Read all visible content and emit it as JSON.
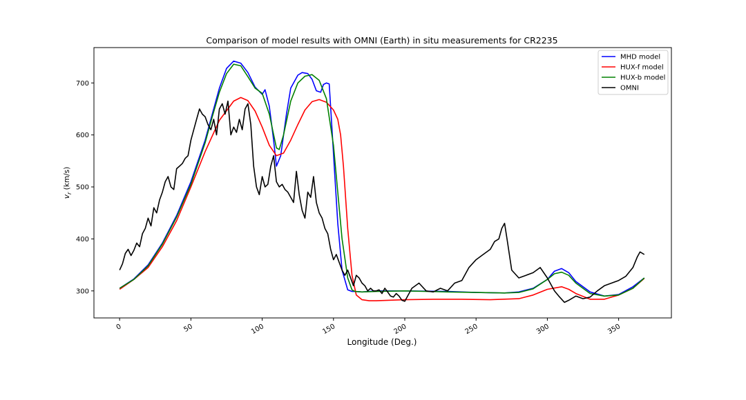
{
  "chart_data": {
    "type": "line",
    "title": "Comparison of model results with OMNI (Earth) in situ measurements for CR2235",
    "xlabel": "Longitude (Deg.)",
    "ylabel_var": "v",
    "ylabel_sub": "r",
    "ylabel_unit": " (km/s)",
    "xlim": [
      -18,
      387
    ],
    "ylim": [
      248,
      768
    ],
    "xticks": [
      0,
      50,
      100,
      150,
      200,
      250,
      300,
      350
    ],
    "yticks": [
      300,
      400,
      500,
      600,
      700
    ],
    "grid": false,
    "legend_position": "top-right",
    "series": [
      {
        "name": "MHD model",
        "color": "#0000ff",
        "x": [
          0,
          10,
          20,
          30,
          40,
          50,
          60,
          65,
          70,
          75,
          80,
          85,
          90,
          95,
          100,
          102,
          105,
          108,
          110,
          113,
          117,
          120,
          125,
          128,
          132,
          135,
          138,
          141,
          143,
          145,
          147,
          149,
          151,
          153,
          156,
          160,
          163,
          165,
          170,
          180,
          200,
          230,
          250,
          270,
          280,
          290,
          300,
          305,
          310,
          315,
          320,
          330,
          340,
          350,
          360,
          368
        ],
        "y": [
          305,
          323,
          350,
          392,
          445,
          510,
          590,
          640,
          690,
          728,
          742,
          738,
          720,
          692,
          678,
          687,
          655,
          590,
          540,
          560,
          640,
          690,
          715,
          720,
          718,
          707,
          685,
          682,
          697,
          700,
          698,
          610,
          520,
          430,
          340,
          302,
          299,
          299,
          298,
          300,
          300,
          299,
          297,
          296,
          298,
          305,
          322,
          338,
          343,
          335,
          318,
          298,
          290,
          293,
          308,
          325
        ]
      },
      {
        "name": "HUX-f model",
        "color": "#ff0000",
        "x": [
          0,
          10,
          20,
          30,
          40,
          50,
          60,
          70,
          80,
          85,
          90,
          95,
          100,
          105,
          110,
          115,
          120,
          125,
          130,
          135,
          140,
          145,
          150,
          153,
          155,
          157,
          160,
          163,
          166,
          170,
          175,
          180,
          200,
          220,
          240,
          260,
          280,
          290,
          300,
          310,
          315,
          320,
          330,
          340,
          350,
          360,
          368
        ],
        "y": [
          303,
          322,
          345,
          385,
          435,
          500,
          568,
          628,
          665,
          672,
          666,
          646,
          615,
          580,
          560,
          565,
          590,
          620,
          648,
          664,
          668,
          663,
          648,
          630,
          600,
          540,
          420,
          330,
          292,
          283,
          281,
          281,
          283,
          284,
          284,
          283,
          285,
          292,
          303,
          308,
          303,
          295,
          284,
          284,
          292,
          305,
          324
        ]
      },
      {
        "name": "HUX-b model",
        "color": "#008000",
        "x": [
          0,
          10,
          20,
          30,
          40,
          50,
          60,
          65,
          70,
          75,
          80,
          85,
          90,
          95,
          100,
          105,
          110,
          112,
          115,
          120,
          125,
          130,
          135,
          140,
          145,
          150,
          153,
          156,
          160,
          163,
          165,
          170,
          180,
          200,
          230,
          250,
          270,
          280,
          290,
          300,
          305,
          310,
          315,
          320,
          330,
          340,
          350,
          360,
          368
        ],
        "y": [
          305,
          322,
          348,
          390,
          442,
          505,
          585,
          635,
          682,
          718,
          736,
          733,
          712,
          690,
          680,
          640,
          575,
          572,
          600,
          665,
          700,
          713,
          716,
          705,
          670,
          580,
          490,
          400,
          325,
          302,
          299,
          298,
          299,
          300,
          298,
          297,
          296,
          297,
          304,
          322,
          333,
          336,
          330,
          315,
          295,
          290,
          292,
          305,
          325
        ]
      },
      {
        "name": "OMNI",
        "color": "#000000",
        "x": [
          0,
          2,
          4,
          6,
          8,
          10,
          12,
          14,
          16,
          18,
          20,
          22,
          24,
          26,
          28,
          30,
          32,
          34,
          36,
          38,
          40,
          42,
          44,
          46,
          48,
          50,
          52,
          54,
          56,
          58,
          60,
          62,
          64,
          66,
          68,
          70,
          72,
          74,
          76,
          78,
          80,
          82,
          84,
          86,
          88,
          90,
          92,
          94,
          96,
          98,
          100,
          102,
          104,
          106,
          108,
          110,
          112,
          114,
          116,
          118,
          120,
          122,
          124,
          126,
          128,
          130,
          132,
          134,
          136,
          138,
          140,
          142,
          144,
          146,
          148,
          150,
          152,
          154,
          156,
          158,
          160,
          162,
          164,
          166,
          168,
          170,
          172,
          174,
          176,
          178,
          180,
          182,
          184,
          186,
          188,
          190,
          192,
          194,
          196,
          198,
          200,
          205,
          210,
          215,
          220,
          225,
          230,
          235,
          240,
          245,
          250,
          255,
          260,
          263,
          266,
          268,
          270,
          272,
          275,
          280,
          285,
          290,
          295,
          300,
          305,
          308,
          312,
          315,
          320,
          325,
          330,
          335,
          340,
          345,
          350,
          355,
          360,
          363,
          365,
          368
        ],
        "y": [
          340,
          352,
          372,
          380,
          368,
          378,
          392,
          385,
          410,
          420,
          440,
          425,
          460,
          450,
          475,
          490,
          510,
          520,
          500,
          495,
          535,
          540,
          545,
          555,
          560,
          590,
          610,
          630,
          650,
          640,
          635,
          620,
          610,
          630,
          600,
          650,
          660,
          640,
          665,
          600,
          615,
          605,
          630,
          610,
          650,
          660,
          620,
          540,
          500,
          485,
          520,
          500,
          505,
          540,
          560,
          510,
          500,
          505,
          495,
          490,
          480,
          470,
          530,
          485,
          455,
          440,
          490,
          480,
          520,
          470,
          450,
          440,
          420,
          410,
          380,
          360,
          370,
          355,
          340,
          330,
          340,
          325,
          310,
          330,
          325,
          315,
          310,
          300,
          305,
          300,
          300,
          302,
          295,
          305,
          298,
          290,
          288,
          295,
          290,
          282,
          280,
          305,
          315,
          300,
          298,
          305,
          300,
          315,
          320,
          345,
          360,
          370,
          380,
          395,
          400,
          420,
          430,
          395,
          340,
          325,
          330,
          335,
          345,
          325,
          300,
          290,
          278,
          282,
          290,
          285,
          288,
          300,
          310,
          315,
          320,
          328,
          345,
          365,
          375,
          370
        ]
      }
    ]
  }
}
